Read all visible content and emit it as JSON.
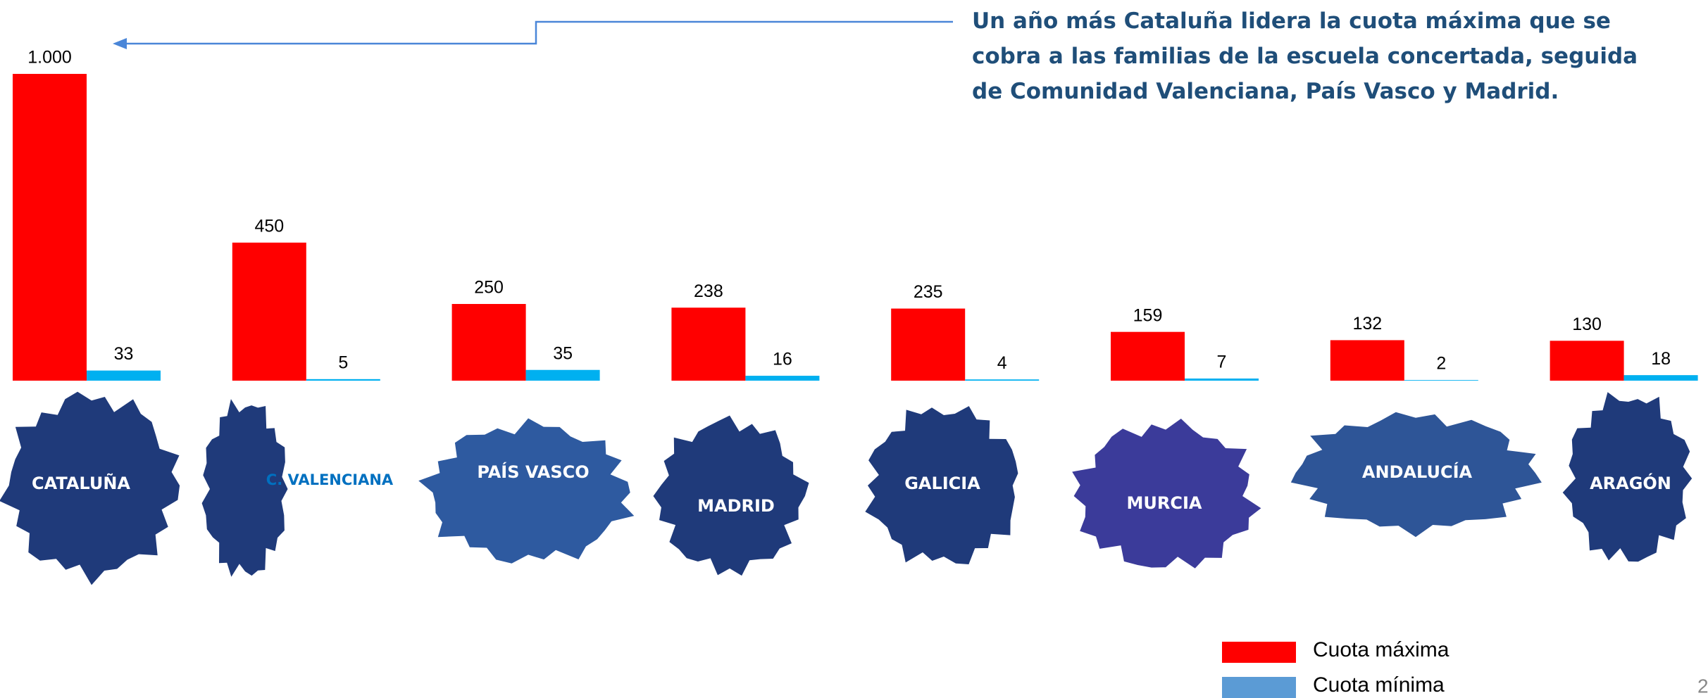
{
  "chart_data": {
    "type": "bar",
    "annotation": [
      "Un año más Cataluña lidera la cuota máxima que se",
      "cobra a las familias de la escuela concertada, seguida",
      "de Comunidad Valenciana, País Vasco y Madrid."
    ],
    "categories": [
      "CATALUÑA",
      "C. VALENCIANA",
      "PAÍS VASCO",
      "MADRID",
      "GALICIA",
      "MURCIA",
      "ANDALUCÍA",
      "ARAGÓN"
    ],
    "series": [
      {
        "name": "Cuota máxima",
        "color": "#ff0000",
        "values": [
          1000,
          450,
          250,
          238,
          235,
          159,
          132,
          130
        ],
        "value_labels": [
          "1.000",
          "450",
          "250",
          "238",
          "235",
          "159",
          "132",
          "130"
        ]
      },
      {
        "name": "Cuota mínima",
        "color": "#00b0f0",
        "values": [
          33,
          5,
          35,
          16,
          4,
          7,
          2,
          18
        ]
      }
    ],
    "page_number": "2"
  }
}
